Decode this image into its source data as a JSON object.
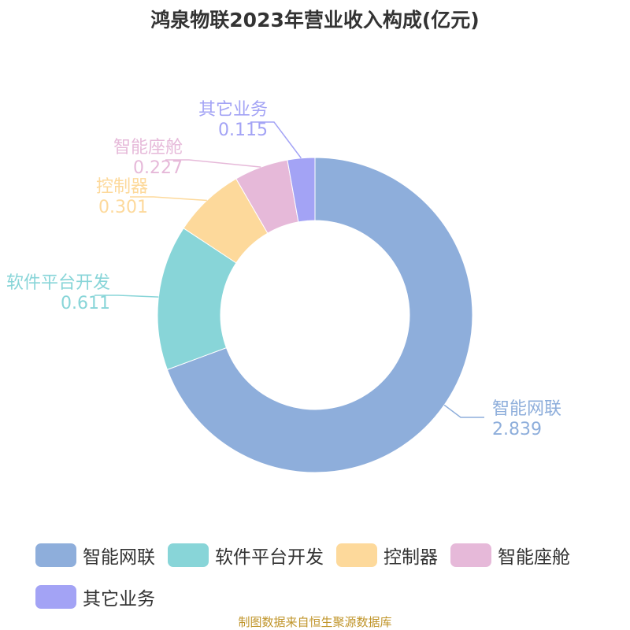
{
  "chart_data": {
    "type": "pie",
    "title": "鸿泉物联2023年营业收入构成(亿元)",
    "unit": "亿元",
    "categories": [
      "智能网联",
      "软件平台开发",
      "控制器",
      "智能座舱",
      "其它业务"
    ],
    "values": [
      2.839,
      0.611,
      0.301,
      0.227,
      0.115
    ],
    "value_labels": [
      "2.839",
      "0.611",
      "0.301",
      "0.227",
      "0.115"
    ],
    "colors": [
      "#8eaedb",
      "#88d5d8",
      "#fdd99b",
      "#e6b9d9",
      "#a3a3f5"
    ],
    "donut": true,
    "start_angle": "top",
    "direction": "clockwise",
    "legend_position": "bottom"
  },
  "source_note": "制图数据来自恒生聚源数据库"
}
